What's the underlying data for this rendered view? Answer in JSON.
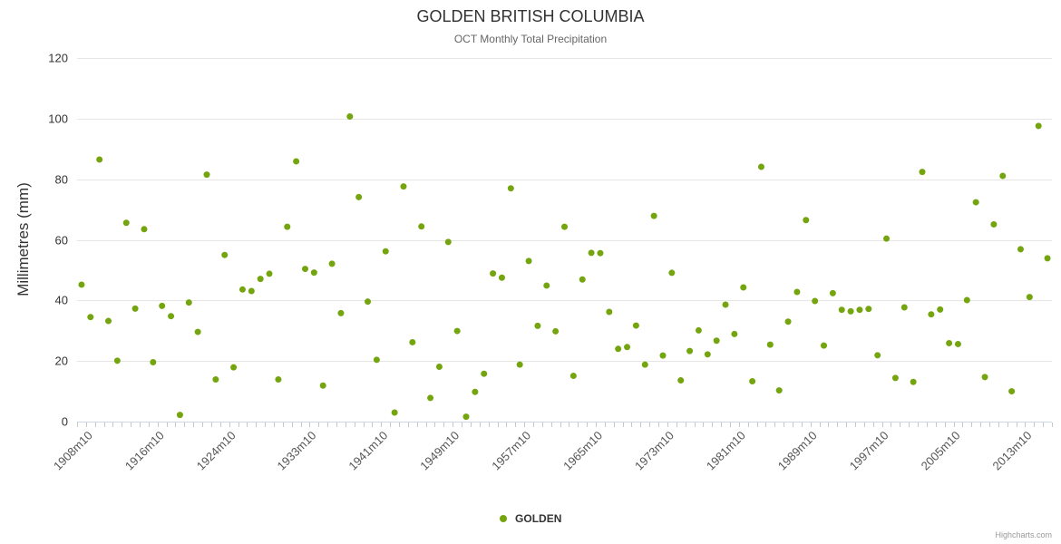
{
  "credits": {
    "text": "Highcharts.com"
  },
  "chart_data": {
    "type": "scatter",
    "title": "GOLDEN BRITISH COLUMBIA",
    "subtitle": "OCT Monthly Total Precipitation",
    "xlabel": "",
    "ylabel": "Millimetres (mm)",
    "ylim": [
      0,
      120
    ],
    "yticks": [
      0,
      20,
      40,
      60,
      80,
      100,
      120
    ],
    "grid": true,
    "legend_position": "bottom",
    "marker_color": "#74a50f",
    "categories": [
      "1907m10",
      "1908m10",
      "1909m10",
      "1910m10",
      "1911m10",
      "1912m10",
      "1913m10",
      "1914m10",
      "1915m10",
      "1916m10",
      "1917m10",
      "1918m10",
      "1919m10",
      "1920m10",
      "1921m10",
      "1922m10",
      "1923m10",
      "1924m10",
      "1925m10",
      "1926m10",
      "1927m10",
      "1928m10",
      "1929m10",
      "1930m10",
      "1931m10",
      "1932m10",
      "1933m10",
      "1934m10",
      "1935m10",
      "1936m10",
      "1937m10",
      "1938m10",
      "1939m10",
      "1940m10",
      "1941m10",
      "1942m10",
      "1943m10",
      "1944m10",
      "1945m10",
      "1946m10",
      "1947m10",
      "1948m10",
      "1949m10",
      "1950m10",
      "1951m10",
      "1952m10",
      "1953m10",
      "1954m10",
      "1955m10",
      "1956m10",
      "1957m10",
      "1958m10",
      "1959m10",
      "1960m10",
      "1961m10",
      "1962m10",
      "1963m10",
      "1964m10",
      "1965m10",
      "1966m10",
      "1967m10",
      "1968m10",
      "1969m10",
      "1970m10",
      "1971m10",
      "1972m10",
      "1973m10",
      "1974m10",
      "1975m10",
      "1976m10",
      "1977m10",
      "1978m10",
      "1979m10",
      "1980m10",
      "1981m10",
      "1982m10",
      "1983m10",
      "1984m10",
      "1985m10",
      "1986m10",
      "1987m10",
      "1988m10",
      "1989m10",
      "1990m10",
      "1991m10",
      "1992m10",
      "1993m10",
      "1994m10",
      "1995m10",
      "1996m10",
      "1997m10",
      "1998m10",
      "1999m10",
      "2000m10",
      "2001m10",
      "2002m10",
      "2003m10",
      "2004m10",
      "2005m10",
      "2006m10",
      "2007m10",
      "2008m10",
      "2009m10",
      "2010m10",
      "2011m10",
      "2012m10",
      "2013m10",
      "2014m10",
      "2015m10"
    ],
    "x_tick_labels": [
      "1908m10",
      "1916m10",
      "1924m10",
      "1933m10",
      "1941m10",
      "1949m10",
      "1957m10",
      "1965m10",
      "1973m10",
      "1981m10",
      "1989m10",
      "1997m10",
      "2005m10",
      "2013m10"
    ],
    "series": [
      {
        "name": "GOLDEN",
        "color": "#74a50f",
        "values": [
          45.2,
          34.5,
          86.5,
          33.2,
          20.1,
          65.6,
          37.3,
          63.5,
          19.6,
          38.2,
          34.8,
          2.2,
          39.3,
          29.6,
          81.5,
          13.9,
          55.0,
          17.9,
          43.6,
          43.1,
          47.1,
          48.8,
          13.9,
          64.3,
          85.9,
          50.4,
          49.2,
          11.9,
          52.1,
          35.8,
          100.7,
          74.1,
          39.6,
          20.4,
          56.2,
          3.0,
          77.6,
          26.2,
          64.4,
          7.8,
          18.1,
          59.3,
          29.9,
          1.6,
          9.8,
          15.8,
          48.9,
          47.5,
          77.0,
          18.8,
          53.0,
          31.6,
          44.9,
          29.8,
          64.3,
          15.1,
          46.9,
          55.7,
          55.6,
          36.2,
          24.0,
          24.6,
          31.7,
          18.8,
          67.9,
          21.8,
          49.1,
          13.6,
          23.3,
          30.1,
          22.2,
          26.7,
          38.6,
          28.9,
          44.3,
          13.3,
          84.1,
          25.4,
          10.3,
          33.0,
          42.8,
          66.5,
          39.8,
          25.1,
          42.4,
          36.9,
          36.4,
          36.9,
          37.2,
          21.9,
          60.4,
          14.4,
          37.7,
          13.1,
          82.4,
          35.4,
          37.0,
          25.9,
          25.6,
          40.1,
          72.4,
          14.7,
          65.1,
          81.1,
          10.0,
          56.9,
          41.1,
          97.6,
          53.9
        ]
      }
    ]
  }
}
